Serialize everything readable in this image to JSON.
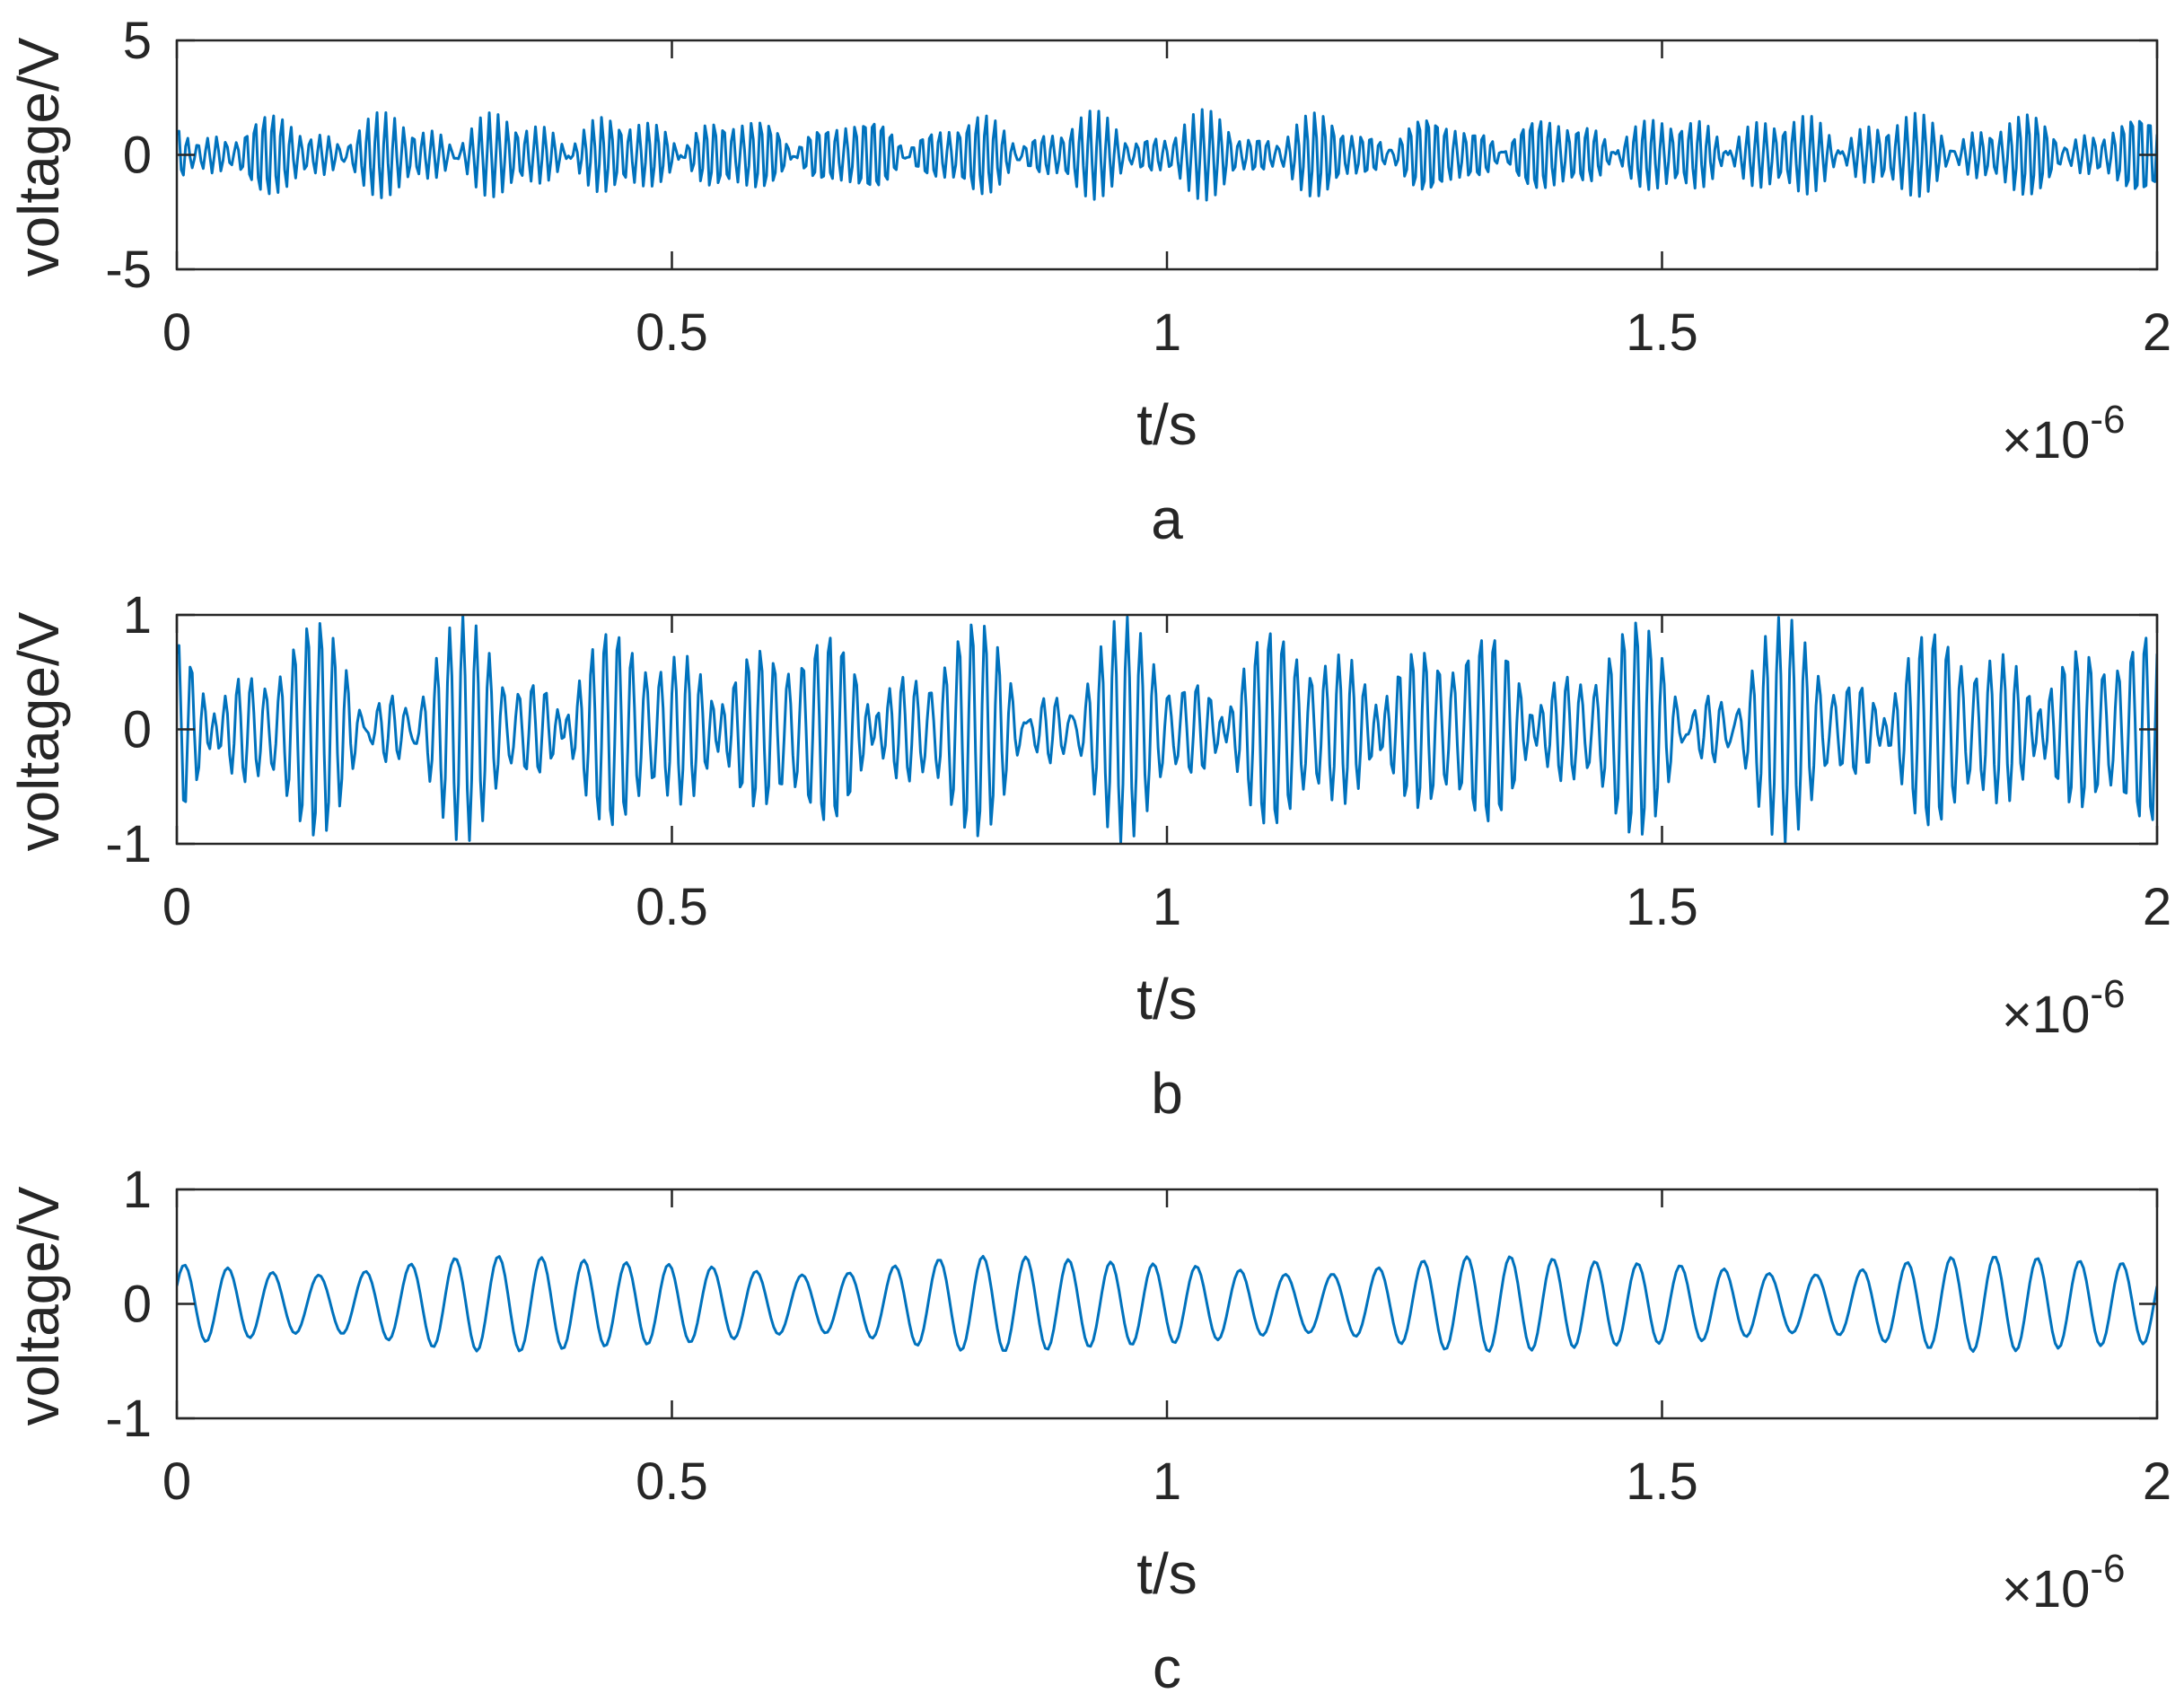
{
  "chart_data": [
    {
      "type": "line",
      "panel_label": "a",
      "xlabel": "t/s",
      "ylabel": "voltage/V",
      "x_exponent_base": "×10",
      "x_exponent_power": "-6",
      "xlim": [
        0,
        2
      ],
      "ylim": [
        -5,
        5
      ],
      "xticks": [
        0,
        0.5,
        1,
        1.5,
        2
      ],
      "xtick_labels": [
        "0",
        "0.5",
        "1",
        "1.5",
        "2"
      ],
      "yticks": [
        5,
        0,
        -5
      ],
      "ytick_labels": [
        "5",
        "0",
        "-5"
      ],
      "line_color": "#0072BD",
      "grid": false,
      "series": [
        {
          "x_range": [
            0,
            2
          ],
          "samples": 900,
          "components": [
            {
              "amplitude": 1.0,
              "cycles": 211,
              "phase": 0.0
            },
            {
              "amplitude": 0.6,
              "cycles": 228,
              "phase": 1.1
            },
            {
              "amplitude": 0.4,
              "cycles": 247,
              "phase": 2.0
            }
          ]
        }
      ]
    },
    {
      "type": "line",
      "panel_label": "b",
      "xlabel": "t/s",
      "ylabel": "voltage/V",
      "x_exponent_base": "×10",
      "x_exponent_power": "-6",
      "xlim": [
        0,
        2
      ],
      "ylim": [
        -1,
        1
      ],
      "xticks": [
        0,
        0.5,
        1,
        1.5,
        2
      ],
      "xtick_labels": [
        "0",
        "0.5",
        "1",
        "1.5",
        "2"
      ],
      "yticks": [
        1,
        0,
        -1
      ],
      "ytick_labels": [
        "1",
        "0",
        "-1"
      ],
      "line_color": "#0072BD",
      "grid": false,
      "series": [
        {
          "x_range": [
            0,
            2
          ],
          "samples": 900,
          "components": [
            {
              "amplitude": 0.4,
              "cycles": 140,
              "phase": 0.3
            },
            {
              "amplitude": 0.35,
              "cycles": 152,
              "phase": 1.7
            },
            {
              "amplitude": 0.25,
              "cycles": 167,
              "phase": 0.9
            }
          ]
        }
      ]
    },
    {
      "type": "line",
      "panel_label": "c",
      "xlabel": "t/s",
      "ylabel": "voltage/V",
      "x_exponent_base": "×10",
      "x_exponent_power": "-6",
      "xlim": [
        0,
        2
      ],
      "ylim": [
        -1,
        1
      ],
      "xticks": [
        0,
        0.5,
        1,
        1.5,
        2
      ],
      "xtick_labels": [
        "0",
        "0.5",
        "1",
        "1.5",
        "2"
      ],
      "yticks": [
        1,
        0,
        -1
      ],
      "ytick_labels": [
        "1",
        "0",
        "-1"
      ],
      "line_color": "#0072BD",
      "grid": false,
      "series": [
        {
          "x_range": [
            0,
            2
          ],
          "samples": 700,
          "components": [
            {
              "amplitude": 0.32,
              "cycles": 45,
              "phase": 0.0
            },
            {
              "amplitude": 0.12,
              "cycles": 49,
              "phase": 1.3
            },
            {
              "amplitude": 0.06,
              "cycles": 41,
              "phase": 2.4
            }
          ]
        }
      ]
    }
  ]
}
